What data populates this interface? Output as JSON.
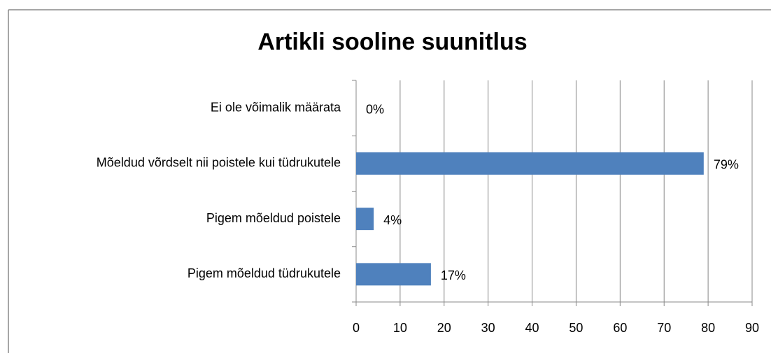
{
  "chart_data": {
    "type": "hbar",
    "title": "Artikli sooline suunitlus",
    "categories": [
      "Ei ole võimalik määrata",
      "Mõeldud võrdselt nii poistele kui tüdrukutele",
      "Pigem mõeldud poistele",
      "Pigem mõeldud tüdrukutele"
    ],
    "values": [
      0,
      79,
      4,
      17
    ],
    "value_labels": [
      "0%",
      "79%",
      "4%",
      "17%"
    ],
    "color": "#4f81bd",
    "xlim": [
      0,
      90
    ],
    "xticks": [
      0,
      10,
      20,
      30,
      40,
      50,
      60,
      70,
      80,
      90
    ],
    "grid": true
  }
}
